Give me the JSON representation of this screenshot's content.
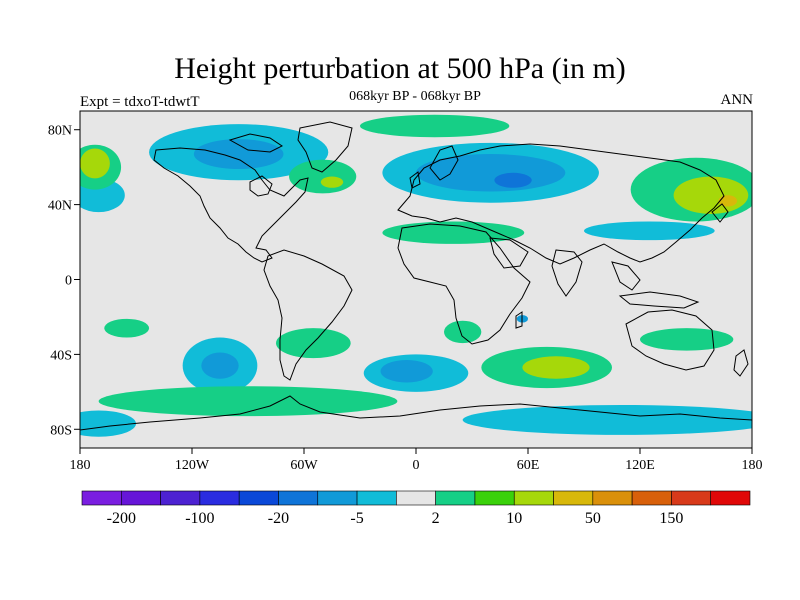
{
  "header": {
    "title": "Height perturbation at 500 hPa (in m)",
    "subtitle": "068kyr BP - 068kyr BP",
    "experiment": "Expt = tdxoT-tdwtT",
    "season": "ANN"
  },
  "chart_data": {
    "type": "heatmap",
    "title": "Height perturbation at 500 hPa (in m)",
    "projection": "cylindrical-equidistant",
    "lon_range": [
      -180,
      180
    ],
    "lat_range": [
      -90,
      90
    ],
    "lon_ticks": [
      {
        "value": -180,
        "label": "180"
      },
      {
        "value": -120,
        "label": "120W"
      },
      {
        "value": -60,
        "label": "60W"
      },
      {
        "value": 0,
        "label": "0"
      },
      {
        "value": 60,
        "label": "60E"
      },
      {
        "value": 120,
        "label": "120E"
      },
      {
        "value": 180,
        "label": "180"
      }
    ],
    "lat_ticks": [
      {
        "value": 80,
        "label": "80N"
      },
      {
        "value": 40,
        "label": "40N"
      },
      {
        "value": 0,
        "label": "0"
      },
      {
        "value": -40,
        "label": "40S"
      },
      {
        "value": -80,
        "label": "80S"
      }
    ],
    "background_color": "#e6e6e6",
    "colorbar": {
      "colors": [
        "#7a1ee0",
        "#6615d8",
        "#4d22d2",
        "#2a2ce0",
        "#0a48d8",
        "#0f74d8",
        "#119ad8",
        "#11bcd8",
        "#e6e6e6",
        "#16cf86",
        "#3ad10a",
        "#a6d80a",
        "#d8b80a",
        "#da900a",
        "#d8600a",
        "#d83a1a",
        "#e00808"
      ],
      "labels": [
        {
          "value": "-200",
          "index": 1
        },
        {
          "value": "-100",
          "index": 3
        },
        {
          "value": "-20",
          "index": 5
        },
        {
          "value": "-5",
          "index": 7
        },
        {
          "value": "2",
          "index": 9
        },
        {
          "value": "10",
          "index": 11
        },
        {
          "value": "50",
          "index": 13
        },
        {
          "value": "150",
          "index": 15
        }
      ]
    },
    "regions": [
      {
        "name": "arctic-canada-negative",
        "color": "#11bcd8",
        "center": [
          -95,
          68
        ],
        "radius": [
          48,
          15
        ]
      },
      {
        "name": "arctic-canada-core",
        "color": "#119ad8",
        "center": [
          -95,
          67
        ],
        "radius": [
          24,
          8
        ]
      },
      {
        "name": "north-atlantic-positive",
        "color": "#16cf86",
        "center": [
          -50,
          55
        ],
        "radius": [
          18,
          9
        ]
      },
      {
        "name": "north-atlantic-core",
        "color": "#a6d80a",
        "center": [
          -45,
          52
        ],
        "radius": [
          6,
          3
        ]
      },
      {
        "name": "arctic-positive",
        "color": "#16cf86",
        "center": [
          10,
          82
        ],
        "radius": [
          40,
          6
        ]
      },
      {
        "name": "eurasia-negative",
        "color": "#11bcd8",
        "center": [
          40,
          57
        ],
        "radius": [
          58,
          16
        ]
      },
      {
        "name": "eurasia-core",
        "color": "#119ad8",
        "center": [
          40,
          57
        ],
        "radius": [
          40,
          10
        ]
      },
      {
        "name": "eurasia-inner",
        "color": "#0f74d8",
        "center": [
          52,
          53
        ],
        "radius": [
          10,
          4
        ]
      },
      {
        "name": "north-pacific-west-negative",
        "color": "#11bcd8",
        "center": [
          -170,
          45
        ],
        "radius": [
          14,
          9
        ]
      },
      {
        "name": "far-east-positive",
        "color": "#16cf86",
        "center": [
          -172,
          60
        ],
        "radius": [
          14,
          12
        ]
      },
      {
        "name": "far-east-core",
        "color": "#a6d80a",
        "center": [
          -172,
          62
        ],
        "radius": [
          8,
          8
        ]
      },
      {
        "name": "east-asia-positive",
        "color": "#16cf86",
        "center": [
          150,
          48
        ],
        "radius": [
          35,
          17
        ]
      },
      {
        "name": "east-asia-core",
        "color": "#a6d80a",
        "center": [
          158,
          45
        ],
        "radius": [
          20,
          10
        ]
      },
      {
        "name": "east-asia-inner",
        "color": "#d8b80a",
        "center": [
          167,
          42
        ],
        "radius": [
          5,
          3
        ]
      },
      {
        "name": "north-pacific-negative",
        "color": "#11bcd8",
        "center": [
          125,
          26
        ],
        "radius": [
          35,
          5
        ]
      },
      {
        "name": "north-africa-positive",
        "color": "#16cf86",
        "center": [
          20,
          25
        ],
        "radius": [
          38,
          6
        ]
      },
      {
        "name": "south-pacific-positive",
        "color": "#16cf86",
        "center": [
          -155,
          -26
        ],
        "radius": [
          12,
          5
        ]
      },
      {
        "name": "south-pacific-negative",
        "color": "#11bcd8",
        "center": [
          -105,
          -46
        ],
        "radius": [
          20,
          15
        ]
      },
      {
        "name": "south-pacific-core",
        "color": "#119ad8",
        "center": [
          -105,
          -46
        ],
        "radius": [
          10,
          7
        ]
      },
      {
        "name": "south-america-positive",
        "color": "#16cf86",
        "center": [
          -55,
          -34
        ],
        "radius": [
          20,
          8
        ]
      },
      {
        "name": "south-atlantic-positive",
        "color": "#16cf86",
        "center": [
          25,
          -28
        ],
        "radius": [
          10,
          6
        ]
      },
      {
        "name": "indian-ocean-dot",
        "color": "#119ad8",
        "center": [
          57,
          -21
        ],
        "radius": [
          3,
          2
        ]
      },
      {
        "name": "south-atlantic-negative",
        "color": "#11bcd8",
        "center": [
          0,
          -50
        ],
        "radius": [
          28,
          10
        ]
      },
      {
        "name": "south-atlantic-core",
        "color": "#119ad8",
        "center": [
          -5,
          -49
        ],
        "radius": [
          14,
          6
        ]
      },
      {
        "name": "indian-ocean-positive",
        "color": "#16cf86",
        "center": [
          70,
          -47
        ],
        "radius": [
          35,
          11
        ]
      },
      {
        "name": "indian-ocean-core",
        "color": "#a6d80a",
        "center": [
          75,
          -47
        ],
        "radius": [
          18,
          6
        ]
      },
      {
        "name": "australia-west-positive",
        "color": "#16cf86",
        "center": [
          145,
          -32
        ],
        "radius": [
          25,
          6
        ]
      },
      {
        "name": "southern-ocean-positive",
        "color": "#16cf86",
        "center": [
          -90,
          -65
        ],
        "radius": [
          80,
          8
        ]
      },
      {
        "name": "southern-ocean-east-negative",
        "color": "#11bcd8",
        "center": [
          110,
          -75
        ],
        "radius": [
          85,
          8
        ]
      },
      {
        "name": "southern-ocean-west-negative",
        "color": "#11bcd8",
        "center": [
          -170,
          -77
        ],
        "radius": [
          20,
          7
        ]
      }
    ]
  }
}
